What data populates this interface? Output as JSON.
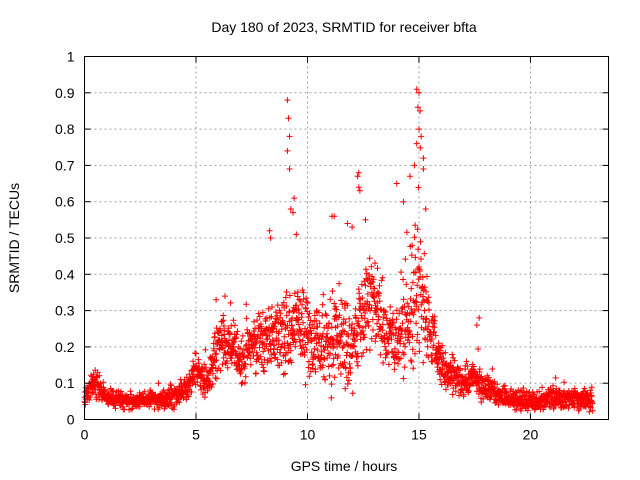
{
  "colors": {
    "series": "#ff0000",
    "axis": "#000000",
    "grid": "#a0a0a0",
    "background": "#ffffff"
  },
  "chart_data": {
    "type": "scatter",
    "title": "Day 180 of 2023, SRMTID for receiver bfta",
    "xlabel": "GPS time / hours",
    "ylabel": "SRMTID / TECUs",
    "xlim": [
      0,
      23.5
    ],
    "ylim": [
      0,
      1
    ],
    "grid": true,
    "marker": "plus",
    "x_ticks": [
      0,
      5,
      10,
      15,
      20
    ],
    "x_tick_labels": [
      "0",
      "5",
      "10",
      "15",
      "20"
    ],
    "y_ticks": [
      0,
      0.1,
      0.2,
      0.3,
      0.4,
      0.5,
      0.6,
      0.7,
      0.8,
      0.9,
      1
    ],
    "y_tick_labels": [
      "0",
      "0.1",
      "0.2",
      "0.3",
      "0.4",
      "0.5",
      "0.6",
      "0.7",
      "0.8",
      "0.9",
      "1"
    ],
    "series": [
      {
        "name": "SRMTID",
        "x_range": [
          0,
          22.8
        ],
        "step": 0.01,
        "envelope": {
          "x": [
            0,
            0.3,
            0.6,
            1,
            2,
            3,
            4,
            4.6,
            5,
            5.5,
            6,
            6.5,
            7,
            7.5,
            8,
            8.5,
            9,
            9.5,
            10,
            10.5,
            11,
            11.5,
            12,
            12.5,
            13,
            13.5,
            14,
            14.5,
            15,
            15.3,
            15.6,
            16,
            16.5,
            17,
            17.5,
            18,
            19,
            20,
            21,
            22,
            22.8
          ],
          "center": [
            0.06,
            0.1,
            0.09,
            0.06,
            0.05,
            0.055,
            0.06,
            0.09,
            0.14,
            0.1,
            0.2,
            0.22,
            0.17,
            0.21,
            0.2,
            0.24,
            0.22,
            0.25,
            0.24,
            0.2,
            0.22,
            0.23,
            0.21,
            0.3,
            0.33,
            0.24,
            0.22,
            0.27,
            0.38,
            0.3,
            0.22,
            0.15,
            0.12,
            0.11,
            0.12,
            0.08,
            0.06,
            0.05,
            0.06,
            0.06,
            0.05
          ],
          "spread": [
            0.02,
            0.03,
            0.03,
            0.02,
            0.02,
            0.02,
            0.03,
            0.03,
            0.04,
            0.04,
            0.07,
            0.07,
            0.06,
            0.07,
            0.08,
            0.09,
            0.1,
            0.11,
            0.1,
            0.09,
            0.11,
            0.12,
            0.11,
            0.12,
            0.11,
            0.09,
            0.1,
            0.12,
            0.2,
            0.14,
            0.08,
            0.05,
            0.04,
            0.04,
            0.04,
            0.03,
            0.025,
            0.025,
            0.025,
            0.025,
            0.025
          ]
        },
        "peaks": [
          {
            "x": 9.1,
            "y": 0.88
          },
          {
            "x": 9.15,
            "y": 0.83
          },
          {
            "x": 9.2,
            "y": 0.78
          },
          {
            "x": 9.1,
            "y": 0.74
          },
          {
            "x": 9.2,
            "y": 0.69
          },
          {
            "x": 9.4,
            "y": 0.61
          },
          {
            "x": 9.25,
            "y": 0.58
          },
          {
            "x": 9.35,
            "y": 0.57
          },
          {
            "x": 8.3,
            "y": 0.52
          },
          {
            "x": 8.35,
            "y": 0.5
          },
          {
            "x": 9.5,
            "y": 0.51
          },
          {
            "x": 11.2,
            "y": 0.56
          },
          {
            "x": 11.1,
            "y": 0.56
          },
          {
            "x": 12.3,
            "y": 0.68
          },
          {
            "x": 12.25,
            "y": 0.67
          },
          {
            "x": 12.3,
            "y": 0.64
          },
          {
            "x": 12.35,
            "y": 0.63
          },
          {
            "x": 11.8,
            "y": 0.54
          },
          {
            "x": 12.0,
            "y": 0.53
          },
          {
            "x": 12.6,
            "y": 0.55
          },
          {
            "x": 14.0,
            "y": 0.65
          },
          {
            "x": 14.3,
            "y": 0.6
          },
          {
            "x": 14.9,
            "y": 0.91
          },
          {
            "x": 15.0,
            "y": 0.9
          },
          {
            "x": 14.95,
            "y": 0.86
          },
          {
            "x": 15.05,
            "y": 0.85
          },
          {
            "x": 15.0,
            "y": 0.8
          },
          {
            "x": 15.1,
            "y": 0.78
          },
          {
            "x": 14.9,
            "y": 0.76
          },
          {
            "x": 15.2,
            "y": 0.72
          },
          {
            "x": 14.8,
            "y": 0.7
          },
          {
            "x": 15.2,
            "y": 0.69
          },
          {
            "x": 14.6,
            "y": 0.67
          },
          {
            "x": 15.3,
            "y": 0.58
          },
          {
            "x": 17.7,
            "y": 0.28
          },
          {
            "x": 17.6,
            "y": 0.26
          },
          {
            "x": 5.9,
            "y": 0.33
          },
          {
            "x": 6.3,
            "y": 0.34
          }
        ]
      }
    ]
  }
}
